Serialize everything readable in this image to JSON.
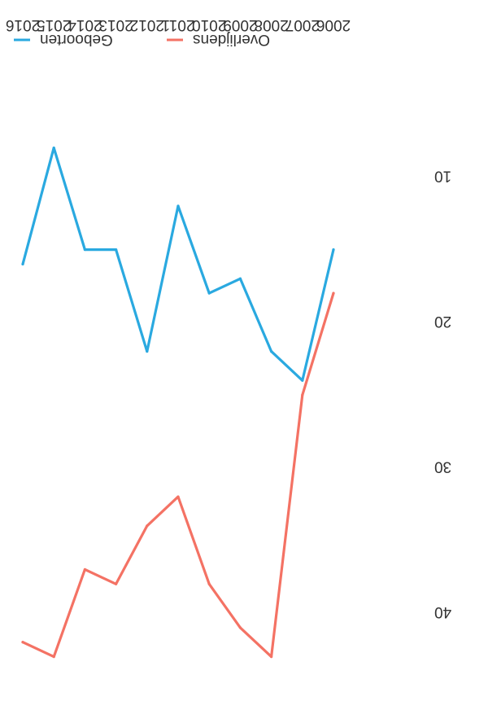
{
  "chart_data": {
    "type": "line",
    "orientation": "rotated 180 degrees",
    "x": [
      "2006",
      "2007",
      "2008",
      "2009",
      "2010",
      "2011",
      "2012",
      "2013",
      "2014",
      "2015",
      "2016"
    ],
    "series": [
      {
        "name": "Geboorten",
        "color": "#2aa9e0",
        "values": [
          15,
          24,
          22,
          17,
          18,
          12,
          22,
          15,
          15,
          8,
          16
        ]
      },
      {
        "name": "Overlijdens",
        "color": "#f47264",
        "values": [
          18,
          25,
          43,
          41,
          38,
          32,
          34,
          38,
          37,
          43,
          42
        ]
      }
    ],
    "y_ticks": [
      10,
      20,
      30,
      40
    ],
    "ylim": [
      5,
      47
    ],
    "legend": "bottom-left",
    "grid": false
  }
}
